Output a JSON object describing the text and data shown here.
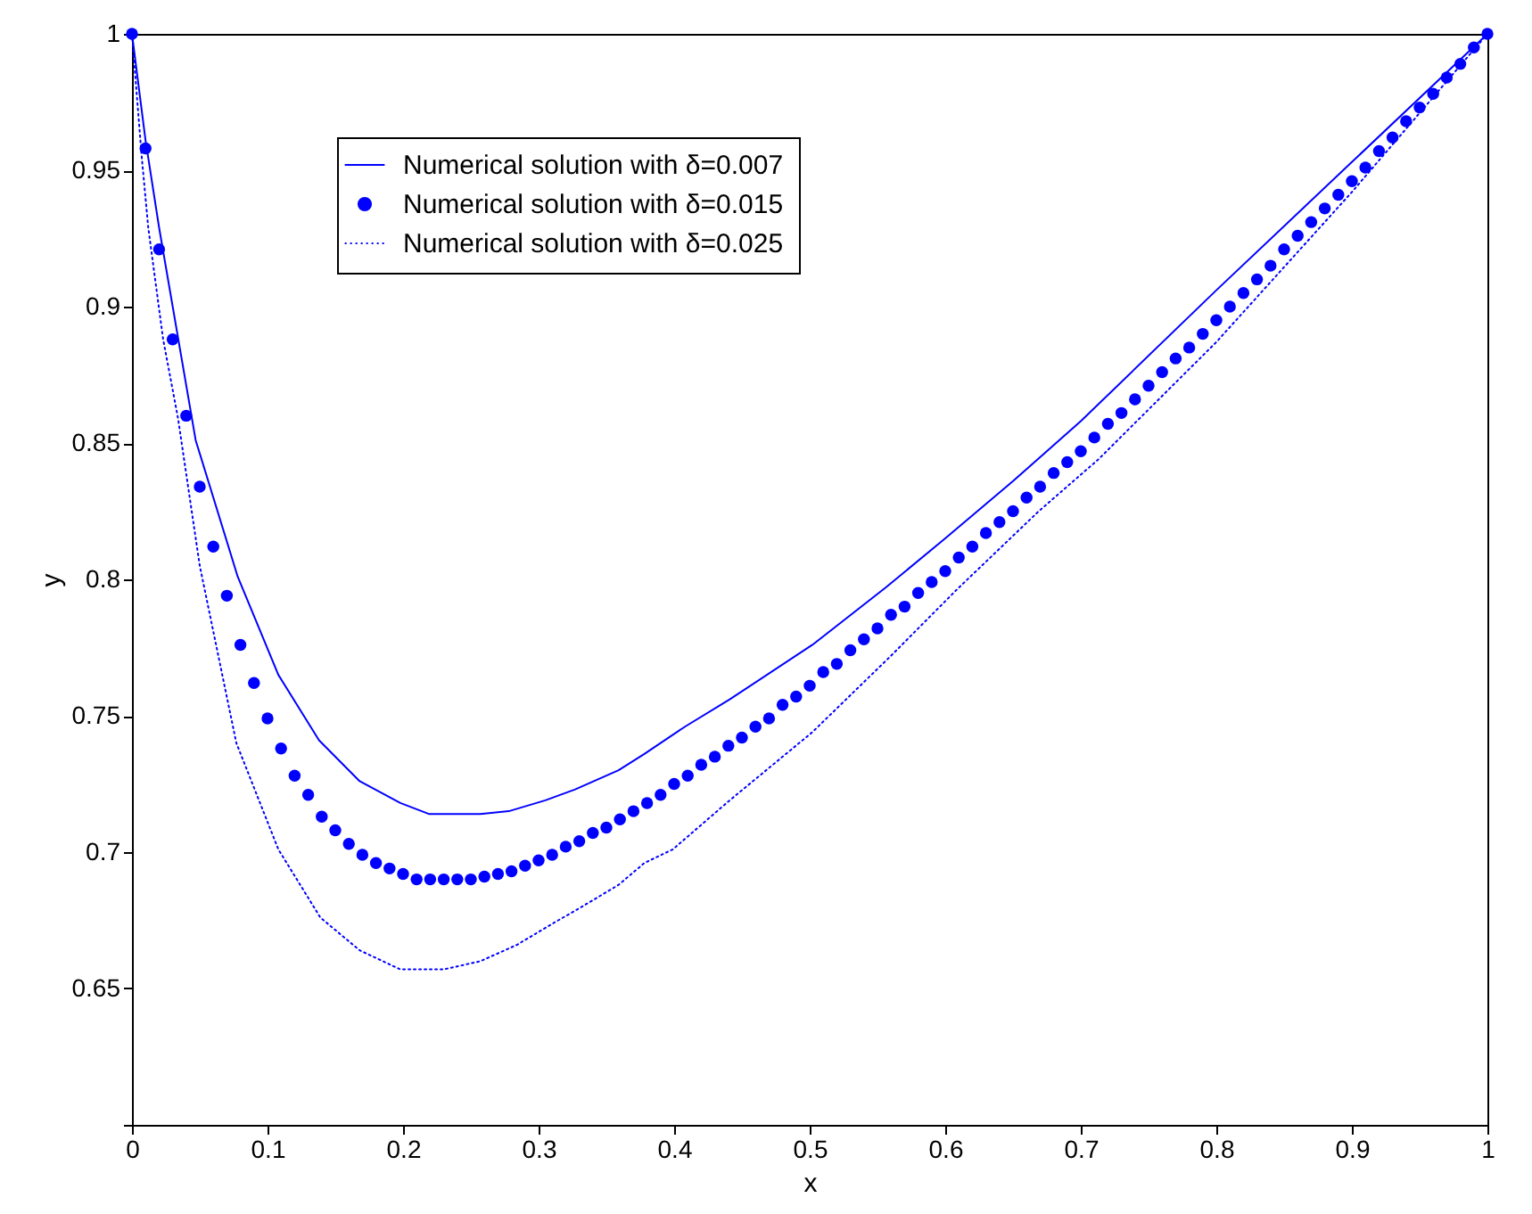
{
  "chart_data": {
    "type": "line",
    "xlabel": "x",
    "ylabel": "y",
    "xlim": [
      0,
      1
    ],
    "ylim": [
      0.6,
      1
    ],
    "xticks": [
      0,
      0.1,
      0.2,
      0.3,
      0.4,
      0.5,
      0.6,
      0.7,
      0.8,
      0.9,
      1
    ],
    "yticks": [
      {
        "value": 0.6,
        "label": null
      },
      0.65,
      0.7,
      0.75,
      0.8,
      0.85,
      0.9,
      0.95,
      1
    ],
    "grid": false,
    "legend": "top",
    "series": [
      {
        "name": "Numerical solution with δ=0.007",
        "color": "#0000ff",
        "line_style": "solid",
        "x": [
          0,
          0.01,
          0.02,
          0.047,
          0.078,
          0.108,
          0.138,
          0.168,
          0.198,
          0.219,
          0.257,
          0.278,
          0.305,
          0.327,
          0.359,
          0.378,
          0.408,
          0.441,
          0.502,
          0.556,
          0.6,
          0.65,
          0.7,
          0.8,
          0.9,
          1
        ],
        "values": [
          1,
          0.961,
          0.929,
          0.851,
          0.801,
          0.765,
          0.741,
          0.726,
          0.718,
          0.714,
          0.714,
          0.715,
          0.719,
          0.723,
          0.73,
          0.736,
          0.746,
          0.756,
          0.776,
          0.797,
          0.815,
          0.836,
          0.858,
          0.906,
          0.953,
          1
        ]
      },
      {
        "name": "Numerical solution with δ=0.015",
        "color": "#0000ff",
        "type": "scatter",
        "marker": "circle",
        "x": [
          0,
          0.01,
          0.02,
          0.03,
          0.04,
          0.05,
          0.06,
          0.07,
          0.08,
          0.09,
          0.1,
          0.11,
          0.12,
          0.13,
          0.14,
          0.15,
          0.16,
          0.17,
          0.18,
          0.19,
          0.2,
          0.21,
          0.22,
          0.23,
          0.24,
          0.25,
          0.26,
          0.27,
          0.28,
          0.29,
          0.3,
          0.31,
          0.32,
          0.33,
          0.34,
          0.35,
          0.36,
          0.37,
          0.38,
          0.39,
          0.4,
          0.41,
          0.42,
          0.43,
          0.44,
          0.45,
          0.46,
          0.47,
          0.48,
          0.49,
          0.5,
          0.51,
          0.52,
          0.53,
          0.54,
          0.55,
          0.56,
          0.57,
          0.58,
          0.59,
          0.6,
          0.61,
          0.62,
          0.63,
          0.64,
          0.65,
          0.66,
          0.67,
          0.68,
          0.69,
          0.7,
          0.71,
          0.72,
          0.73,
          0.74,
          0.75,
          0.76,
          0.77,
          0.78,
          0.79,
          0.8,
          0.81,
          0.82,
          0.83,
          0.84,
          0.85,
          0.86,
          0.87,
          0.88,
          0.89,
          0.9,
          0.91,
          0.92,
          0.93,
          0.94,
          0.95,
          0.96,
          0.97,
          0.98,
          0.99,
          1
        ],
        "values": [
          1,
          0.958,
          0.921,
          0.888,
          0.86,
          0.834,
          0.812,
          0.794,
          0.776,
          0.762,
          0.749,
          0.738,
          0.728,
          0.721,
          0.713,
          0.708,
          0.703,
          0.699,
          0.696,
          0.694,
          0.692,
          0.69,
          0.69,
          0.69,
          0.69,
          0.69,
          0.691,
          0.692,
          0.693,
          0.695,
          0.697,
          0.699,
          0.702,
          0.704,
          0.707,
          0.709,
          0.712,
          0.715,
          0.718,
          0.721,
          0.725,
          0.728,
          0.732,
          0.735,
          0.739,
          0.742,
          0.746,
          0.749,
          0.754,
          0.757,
          0.761,
          0.766,
          0.769,
          0.774,
          0.778,
          0.782,
          0.787,
          0.79,
          0.795,
          0.799,
          0.803,
          0.808,
          0.812,
          0.817,
          0.821,
          0.825,
          0.83,
          0.834,
          0.839,
          0.843,
          0.847,
          0.852,
          0.857,
          0.861,
          0.866,
          0.871,
          0.876,
          0.881,
          0.885,
          0.89,
          0.895,
          0.9,
          0.905,
          0.91,
          0.915,
          0.921,
          0.926,
          0.931,
          0.936,
          0.941,
          0.946,
          0.951,
          0.957,
          0.962,
          0.968,
          0.973,
          0.978,
          0.984,
          0.989,
          0.995,
          1
        ]
      },
      {
        "name": "Numerical solution with δ=0.025",
        "color": "#0000ff",
        "line_style": "dotted",
        "x": [
          0,
          0.007,
          0.012,
          0.023,
          0.034,
          0.05,
          0.077,
          0.108,
          0.139,
          0.168,
          0.198,
          0.23,
          0.257,
          0.284,
          0.311,
          0.332,
          0.359,
          0.378,
          0.399,
          0.441,
          0.502,
          0.56,
          0.608,
          0.669,
          0.713,
          0.8,
          0.9,
          1
        ],
        "values": [
          1,
          0.956,
          0.929,
          0.888,
          0.859,
          0.805,
          0.74,
          0.701,
          0.676,
          0.664,
          0.657,
          0.657,
          0.66,
          0.666,
          0.674,
          0.68,
          0.688,
          0.696,
          0.701,
          0.719,
          0.744,
          0.772,
          0.796,
          0.825,
          0.844,
          0.887,
          0.942,
          1
        ]
      }
    ]
  }
}
